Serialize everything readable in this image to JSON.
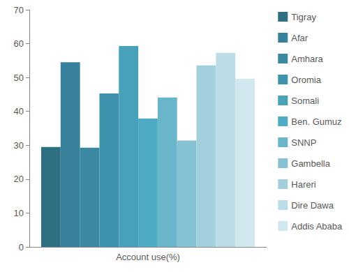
{
  "chart_data": {
    "type": "bar",
    "categories": [
      "Account use(%)"
    ],
    "series": [
      {
        "name": "Tigray",
        "color": "#2f6f82",
        "values": [
          29.5
        ]
      },
      {
        "name": "Afar",
        "color": "#38819a",
        "values": [
          54.5
        ]
      },
      {
        "name": "Amhara",
        "color": "#3b89a1",
        "values": [
          29.3
        ]
      },
      {
        "name": "Oromia",
        "color": "#3f92ab",
        "values": [
          45.3
        ]
      },
      {
        "name": "Somali",
        "color": "#46a1b9",
        "values": [
          59.3
        ]
      },
      {
        "name": "Ben. Gumuz",
        "color": "#4eabc3",
        "values": [
          37.9
        ]
      },
      {
        "name": "SNNP",
        "color": "#69b5c9",
        "values": [
          44.1
        ]
      },
      {
        "name": "Gambella",
        "color": "#86c2d3",
        "values": [
          31.4
        ]
      },
      {
        "name": "Hareri",
        "color": "#a3d0dd",
        "values": [
          53.6
        ]
      },
      {
        "name": "Dire Dawa",
        "color": "#bcdde7",
        "values": [
          57.3
        ]
      },
      {
        "name": "Addis Ababa",
        "color": "#d2e8ef",
        "values": [
          49.6
        ]
      }
    ],
    "ylim": [
      0,
      70
    ],
    "yticks": [
      0,
      10,
      20,
      30,
      40,
      50,
      60,
      70
    ],
    "grid": false,
    "legend": "right"
  }
}
